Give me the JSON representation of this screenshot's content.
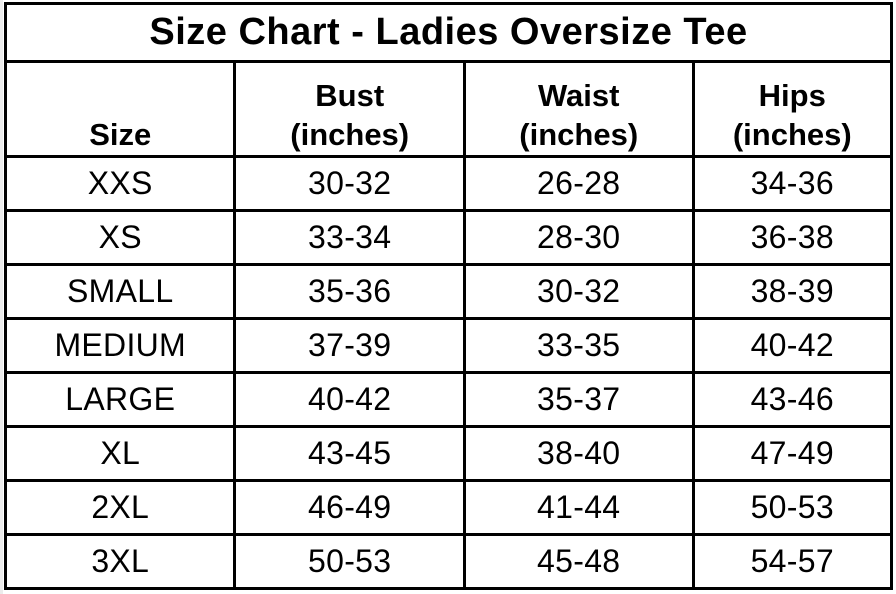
{
  "colors": {
    "text": "#000000",
    "border": "#000000",
    "background": "#ffffff"
  },
  "chart_data": {
    "type": "table",
    "title": "Size Chart - Ladies Oversize Tee",
    "columns": [
      "Size",
      "Bust (inches)",
      "Waist (inches)",
      "Hips (inches)"
    ],
    "headers": [
      {
        "lines": [
          "Size",
          ""
        ]
      },
      {
        "lines": [
          "Bust",
          "(inches)"
        ]
      },
      {
        "lines": [
          "Waist",
          "(inches)"
        ]
      },
      {
        "lines": [
          "Hips",
          "(inches)"
        ]
      }
    ],
    "rows": [
      [
        "XXS",
        "30-32",
        "26-28",
        "34-36"
      ],
      [
        "XS",
        "33-34",
        "28-30",
        "36-38"
      ],
      [
        "SMALL",
        "35-36",
        "30-32",
        "38-39"
      ],
      [
        "MEDIUM",
        "37-39",
        "33-35",
        "40-42"
      ],
      [
        "LARGE",
        "40-42",
        "35-37",
        "43-46"
      ],
      [
        "XL",
        "43-45",
        "38-40",
        "47-49"
      ],
      [
        "2XL",
        "46-49",
        "41-44",
        "50-53"
      ],
      [
        "3XL",
        "50-53",
        "45-48",
        "54-57"
      ]
    ]
  }
}
